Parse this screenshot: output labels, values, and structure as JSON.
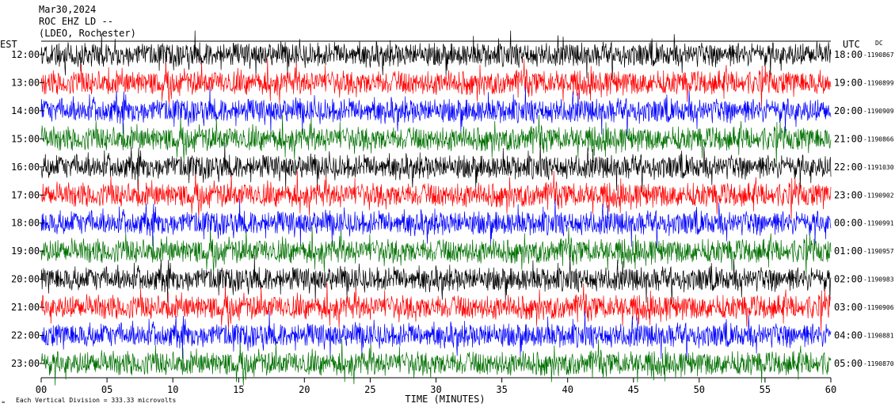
{
  "header": {
    "date": "Mar30,2024",
    "station": "ROC EHZ LD --",
    "location": "(LDEO, Rochester)"
  },
  "left_timezone": "EST",
  "right_timezone": "UTC",
  "dc_label": "DC",
  "footer": {
    "scale_note": "Each Vertical Division =  333.33 microvolts",
    "logo_mark": "≈"
  },
  "chart_data": {
    "type": "line",
    "title": "",
    "xlabel": "TIME (MINUTES)",
    "ylabel": "",
    "xlim": [
      0,
      60
    ],
    "xticks": [
      "00",
      "05",
      "10",
      "15",
      "20",
      "25",
      "30",
      "35",
      "40",
      "45",
      "50",
      "55",
      "60"
    ],
    "grid": false,
    "trace_colors": [
      "#000000",
      "#ff0000",
      "#0000ff",
      "#007000"
    ],
    "rows": [
      {
        "est": "12:00",
        "utc": "18:00",
        "dc": "-1190867"
      },
      {
        "est": "13:00",
        "utc": "19:00",
        "dc": "-1190899"
      },
      {
        "est": "14:00",
        "utc": "20:00",
        "dc": "-1190909"
      },
      {
        "est": "15:00",
        "utc": "21:00",
        "dc": "-1190866"
      },
      {
        "est": "16:00",
        "utc": "22:00",
        "dc": "-1191030"
      },
      {
        "est": "17:00",
        "utc": "23:00",
        "dc": "-1190902"
      },
      {
        "est": "18:00",
        "utc": "00:00",
        "dc": "-1190991"
      },
      {
        "est": "19:00",
        "utc": "01:00",
        "dc": "-1190957"
      },
      {
        "est": "20:00",
        "utc": "02:00",
        "dc": "-1190983"
      },
      {
        "est": "21:00",
        "utc": "03:00",
        "dc": "-1190906"
      },
      {
        "est": "22:00",
        "utc": "04:00",
        "dc": "-1190881"
      },
      {
        "est": "23:00",
        "utc": "05:00",
        "dc": "-1190870"
      }
    ]
  }
}
